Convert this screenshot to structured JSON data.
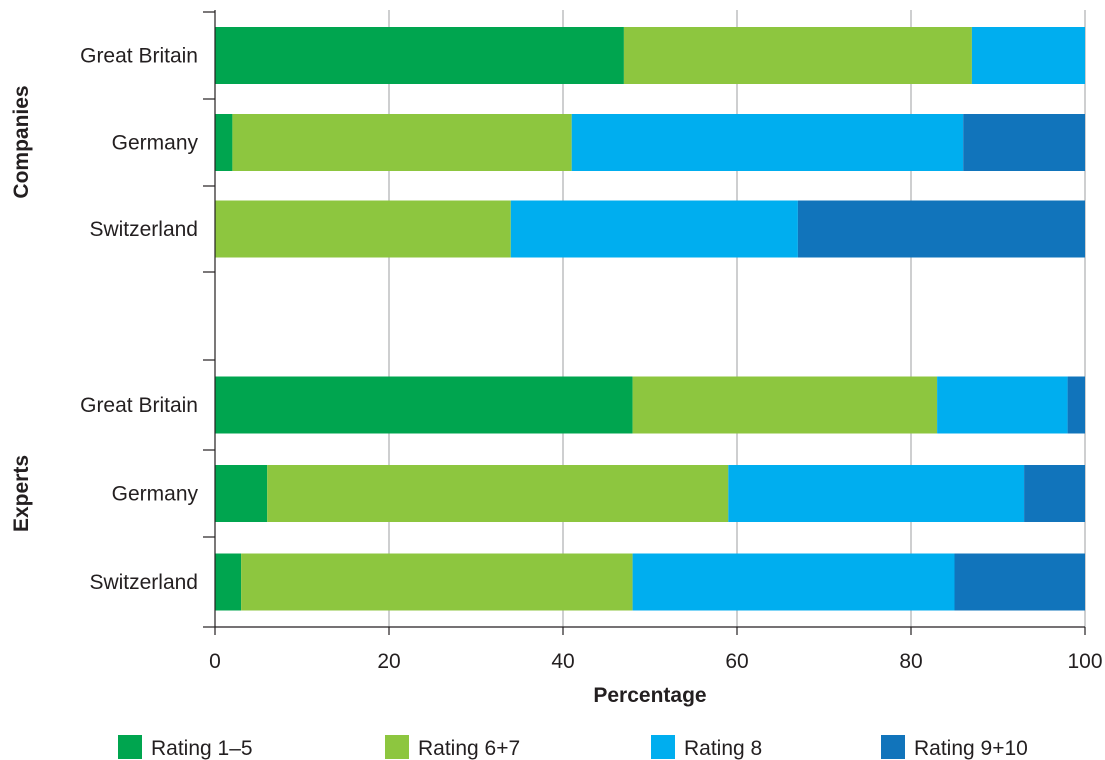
{
  "chart_data": {
    "type": "bar",
    "orientation": "horizontal",
    "stacked": true,
    "groups": [
      {
        "name": "Companies",
        "categories": [
          "Great Britain",
          "Germany",
          "Switzerland"
        ]
      },
      {
        "name": "Experts",
        "categories": [
          "Great Britain",
          "Germany",
          "Switzerland"
        ]
      }
    ],
    "series": [
      {
        "name": "Rating 1–5",
        "color": "#00a54f",
        "values": {
          "Companies": [
            47,
            2,
            0
          ],
          "Experts": [
            48,
            6,
            3
          ]
        }
      },
      {
        "name": "Rating 6+7",
        "color": "#8dc63f",
        "values": {
          "Companies": [
            40,
            39,
            34
          ],
          "Experts": [
            35,
            53,
            45
          ]
        }
      },
      {
        "name": "Rating 8",
        "color": "#00aeef",
        "values": {
          "Companies": [
            13,
            45,
            33
          ],
          "Experts": [
            15,
            34,
            37
          ]
        }
      },
      {
        "name": "Rating 9+10",
        "color": "#1174bb",
        "values": {
          "Companies": [
            0,
            14,
            33
          ],
          "Experts": [
            2,
            7,
            15
          ]
        }
      }
    ],
    "xlabel": "Percentage",
    "xlim": [
      0,
      100
    ],
    "xticks": [
      0,
      20,
      40,
      60,
      80,
      100
    ],
    "grid": "vertical",
    "legend_position": "bottom"
  }
}
